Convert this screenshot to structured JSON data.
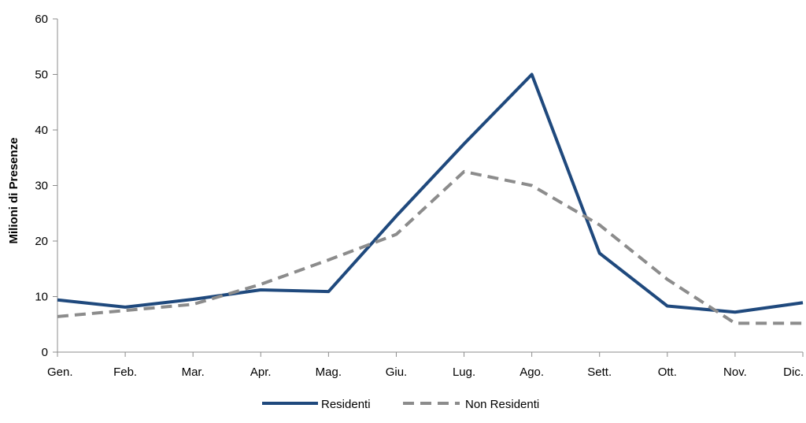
{
  "chart_data": {
    "type": "line",
    "title": "",
    "xlabel": "",
    "ylabel": "Milioni di Presenze",
    "ylim": [
      0,
      60
    ],
    "yticks": [
      0,
      10,
      20,
      30,
      40,
      50,
      60
    ],
    "grid": false,
    "legend_position": "bottom-center",
    "categories": [
      "Gen.",
      "Feb.",
      "Mar.",
      "Apr.",
      "Mag.",
      "Giu.",
      "Lug.",
      "Ago.",
      "Sett.",
      "Ott.",
      "Nov.",
      "Dic."
    ],
    "series": [
      {
        "name": "Residenti",
        "color": "#1F497D",
        "style": "solid",
        "values": [
          9.4,
          8.1,
          9.5,
          11.2,
          10.9,
          24.5,
          37.5,
          50.0,
          17.8,
          8.3,
          7.2,
          8.9
        ]
      },
      {
        "name": "Non Residenti",
        "color": "#8C8C8C",
        "style": "dashed",
        "values": [
          6.4,
          7.5,
          8.6,
          12.2,
          16.6,
          21.2,
          32.5,
          30.0,
          22.9,
          13.1,
          5.2,
          5.2
        ]
      }
    ]
  }
}
